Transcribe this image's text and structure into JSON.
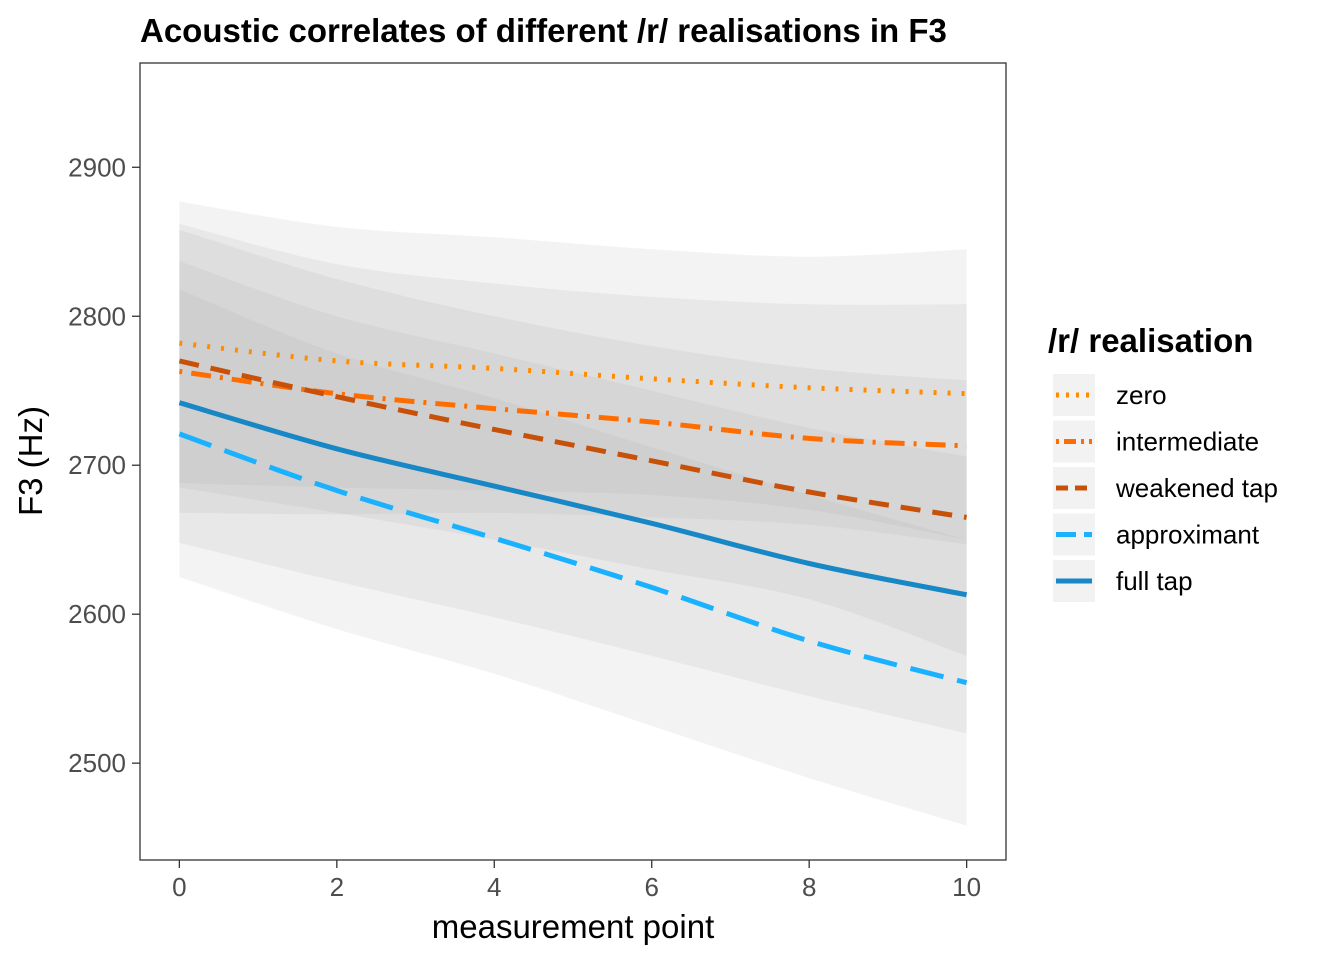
{
  "chart_data": {
    "type": "line",
    "title": "Acoustic correlates of different /r/ realisations in F3",
    "xlabel": "measurement point",
    "ylabel": "F3 (Hz)",
    "xlim": [
      -0.5,
      10.5
    ],
    "ylim": [
      2435,
      2970
    ],
    "x_ticks": [
      0,
      2,
      4,
      6,
      8,
      10
    ],
    "y_ticks": [
      2500,
      2600,
      2700,
      2800,
      2900
    ],
    "grid": false,
    "legend": {
      "title": "/r/ realisation",
      "position": "right"
    },
    "x": [
      0,
      2,
      4,
      6,
      8,
      10
    ],
    "series": [
      {
        "name": "zero",
        "color": "#ff8c00",
        "dash": "dotted",
        "values": [
          2782,
          2770,
          2765,
          2758,
          2752,
          2748
        ],
        "lower": [
          2688,
          2685,
          2683,
          2680,
          2670,
          2650
        ],
        "upper": [
          2877,
          2860,
          2853,
          2845,
          2840,
          2845
        ]
      },
      {
        "name": "intermediate",
        "color": "#ff6d00",
        "dash": "dotdash",
        "values": [
          2763,
          2748,
          2738,
          2729,
          2718,
          2713
        ],
        "lower": [
          2668,
          2667,
          2668,
          2665,
          2660,
          2647
        ],
        "upper": [
          2862,
          2835,
          2822,
          2813,
          2808,
          2808
        ]
      },
      {
        "name": "weakened tap",
        "color": "#c8510a",
        "dash": "dashed",
        "values": [
          2770,
          2746,
          2724,
          2703,
          2682,
          2665
        ],
        "lower": [
          2685,
          2668,
          2650,
          2630,
          2610,
          2572
        ],
        "upper": [
          2858,
          2825,
          2800,
          2780,
          2765,
          2757
        ]
      },
      {
        "name": "approximant",
        "color": "#1ab2ff",
        "dash": "longdash",
        "values": [
          2721,
          2683,
          2651,
          2618,
          2582,
          2554
        ],
        "lower": [
          2625,
          2590,
          2560,
          2525,
          2490,
          2458
        ],
        "upper": [
          2818,
          2775,
          2745,
          2712,
          2680,
          2650
        ]
      },
      {
        "name": "full tap",
        "color": "#1787c6",
        "dash": "solid",
        "values": [
          2742,
          2711,
          2686,
          2661,
          2634,
          2613
        ],
        "lower": [
          2648,
          2622,
          2598,
          2572,
          2545,
          2520
        ],
        "upper": [
          2837,
          2800,
          2775,
          2750,
          2725,
          2706
        ]
      }
    ]
  }
}
